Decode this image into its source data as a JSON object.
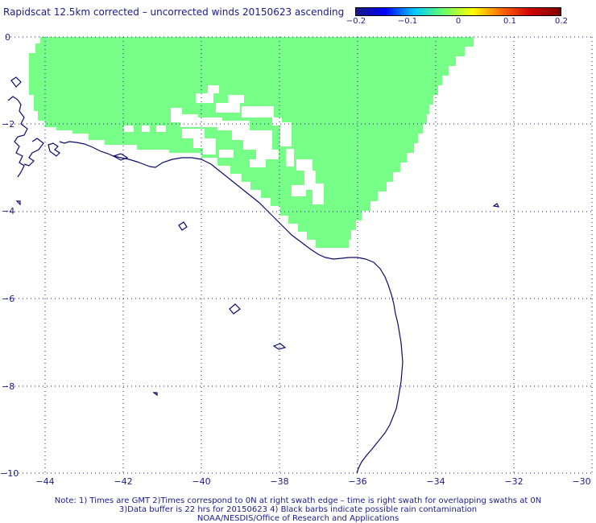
{
  "title": "Rapidscat 12.5km corrected – uncorrected winds 20150623 ascending",
  "colorbar": {
    "ticks": [
      "−0.2",
      "−0.1",
      "0",
      "0.1",
      "0.2"
    ],
    "stops": [
      "#1a1a80",
      "#0000ff",
      "#00c8ff",
      "#66ff66",
      "#ffff00",
      "#ff6600",
      "#cc0000",
      "#800000"
    ]
  },
  "axes": {
    "x_ticks": [
      "−44",
      "−42",
      "−40",
      "−38",
      "−36",
      "−34",
      "−32",
      "−30"
    ],
    "y_ticks": [
      "0",
      "−2",
      "−4",
      "−6",
      "−8",
      "−10"
    ],
    "x_range": [
      -44.8,
      -30
    ],
    "y_range": [
      -10,
      0
    ],
    "grid": true
  },
  "colors": {
    "swath": "#77ff88",
    "coast": "#0b0b6e",
    "text": "#1a1a8c"
  },
  "notes": {
    "line1": "Note: 1) Times are GMT 2)Times correspond to 0N at right swath edge – time is right swath for overlapping swaths at 0N",
    "line2": "3)Data buffer is 22 hrs for 20150623 4) Black barbs indicate possible rain contamination",
    "line3": "NOAA/NESDIS/Office of Research and Applications"
  }
}
